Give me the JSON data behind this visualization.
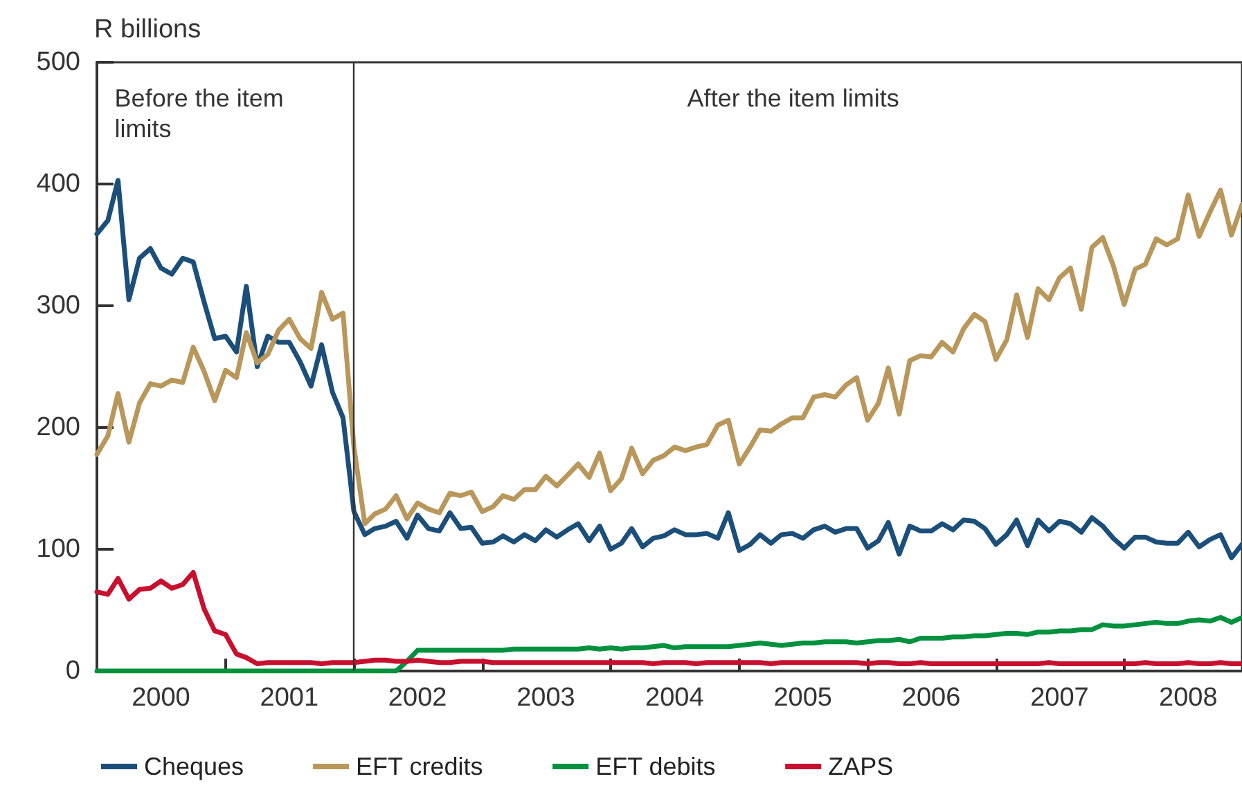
{
  "chart_data": {
    "type": "line",
    "ylabel": "R billions",
    "x": [
      "2000-01",
      "2000-02",
      "2000-03",
      "2000-04",
      "2000-05",
      "2000-06",
      "2000-07",
      "2000-08",
      "2000-09",
      "2000-10",
      "2000-11",
      "2000-12",
      "2001-01",
      "2001-02",
      "2001-03",
      "2001-04",
      "2001-05",
      "2001-06",
      "2001-07",
      "2001-08",
      "2001-09",
      "2001-10",
      "2001-11",
      "2001-12",
      "2002-01",
      "2002-02",
      "2002-03",
      "2002-04",
      "2002-05",
      "2002-06",
      "2002-07",
      "2002-08",
      "2002-09",
      "2002-10",
      "2002-11",
      "2002-12",
      "2003-01",
      "2003-02",
      "2003-03",
      "2003-04",
      "2003-05",
      "2003-06",
      "2003-07",
      "2003-08",
      "2003-09",
      "2003-10",
      "2003-11",
      "2003-12",
      "2004-01",
      "2004-02",
      "2004-03",
      "2004-04",
      "2004-05",
      "2004-06",
      "2004-07",
      "2004-08",
      "2004-09",
      "2004-10",
      "2004-11",
      "2004-12",
      "2005-01",
      "2005-02",
      "2005-03",
      "2005-04",
      "2005-05",
      "2005-06",
      "2005-07",
      "2005-08",
      "2005-09",
      "2005-10",
      "2005-11",
      "2005-12",
      "2006-01",
      "2006-02",
      "2006-03",
      "2006-04",
      "2006-05",
      "2006-06",
      "2006-07",
      "2006-08",
      "2006-09",
      "2006-10",
      "2006-11",
      "2006-12",
      "2007-01",
      "2007-02",
      "2007-03",
      "2007-04",
      "2007-05",
      "2007-06",
      "2007-07",
      "2007-08",
      "2007-09",
      "2007-10",
      "2007-11",
      "2007-12",
      "2008-01",
      "2008-02",
      "2008-03",
      "2008-04",
      "2008-05",
      "2008-06",
      "2008-07",
      "2008-08",
      "2008-09",
      "2008-10",
      "2008-11",
      "2008-12"
    ],
    "series": [
      {
        "name": "Cheques",
        "color": "#1b4f7a",
        "values": [
          359,
          370,
          403,
          305,
          339,
          347,
          331,
          326,
          339,
          336,
          303,
          273,
          275,
          262,
          316,
          250,
          275,
          270,
          270,
          254,
          234,
          268,
          229,
          208,
          131,
          112,
          117,
          119,
          123,
          109,
          128,
          117,
          115,
          130,
          117,
          118,
          105,
          106,
          111,
          106,
          112,
          107,
          116,
          110,
          116,
          121,
          107,
          119,
          100,
          105,
          117,
          102,
          109,
          111,
          116,
          112,
          112,
          113,
          109,
          130,
          99,
          104,
          112,
          105,
          112,
          113,
          109,
          116,
          119,
          114,
          117,
          117,
          101,
          107,
          122,
          96,
          119,
          115,
          115,
          121,
          116,
          124,
          123,
          117,
          104,
          112,
          124,
          103,
          124,
          115,
          123,
          121,
          114,
          126,
          119,
          109,
          101,
          110,
          110,
          106,
          105,
          105,
          114,
          102,
          108,
          112,
          93,
          104
        ]
      },
      {
        "name": "EFT credits",
        "color": "#b9975b",
        "values": [
          178,
          193,
          228,
          188,
          220,
          236,
          234,
          239,
          237,
          266,
          246,
          222,
          247,
          241,
          278,
          253,
          260,
          280,
          289,
          273,
          265,
          311,
          289,
          294,
          184,
          121,
          129,
          133,
          144,
          125,
          138,
          133,
          130,
          146,
          144,
          147,
          131,
          135,
          144,
          141,
          149,
          149,
          160,
          152,
          161,
          170,
          159,
          179,
          148,
          158,
          183,
          162,
          173,
          177,
          184,
          181,
          184,
          186,
          202,
          206,
          170,
          184,
          198,
          197,
          203,
          208,
          208,
          225,
          227,
          225,
          235,
          241,
          206,
          220,
          249,
          211,
          255,
          259,
          258,
          270,
          262,
          281,
          293,
          287,
          256,
          272,
          309,
          274,
          314,
          305,
          323,
          331,
          297,
          348,
          356,
          333,
          301,
          330,
          334,
          355,
          350,
          355,
          391,
          357,
          377,
          395,
          358,
          383
        ]
      },
      {
        "name": "EFT debits",
        "color": "#00913f",
        "values": [
          0,
          0,
          0,
          0,
          0,
          0,
          0,
          0,
          0,
          0,
          0,
          0,
          0,
          0,
          0,
          0,
          0,
          0,
          0,
          0,
          0,
          0,
          0,
          0,
          0,
          0,
          0,
          0,
          0,
          8,
          17,
          17,
          17,
          17,
          17,
          17,
          17,
          17,
          17,
          18,
          18,
          18,
          18,
          18,
          18,
          18,
          19,
          18,
          19,
          18,
          19,
          19,
          20,
          21,
          19,
          20,
          20,
          20,
          20,
          20,
          21,
          22,
          23,
          22,
          21,
          22,
          23,
          23,
          24,
          24,
          24,
          23,
          24,
          25,
          25,
          26,
          24,
          27,
          27,
          27,
          28,
          28,
          29,
          29,
          30,
          31,
          31,
          30,
          32,
          32,
          33,
          33,
          34,
          34,
          38,
          37,
          37,
          38,
          39,
          40,
          39,
          39,
          41,
          42,
          41,
          44,
          40,
          44
        ]
      },
      {
        "name": "ZAPS",
        "color": "#c8102e",
        "values": [
          65,
          63,
          76,
          59,
          67,
          68,
          74,
          68,
          71,
          81,
          51,
          33,
          30,
          14,
          11,
          6,
          7,
          7,
          7,
          7,
          7,
          6,
          7,
          7,
          7,
          8,
          9,
          9,
          8,
          8,
          9,
          8,
          7,
          7,
          8,
          8,
          8,
          7,
          7,
          7,
          7,
          7,
          7,
          7,
          7,
          7,
          7,
          7,
          7,
          7,
          7,
          7,
          6,
          7,
          7,
          7,
          6,
          7,
          7,
          7,
          7,
          7,
          7,
          6,
          7,
          7,
          7,
          7,
          7,
          7,
          7,
          7,
          6,
          7,
          7,
          6,
          6,
          7,
          6,
          6,
          6,
          6,
          6,
          6,
          6,
          6,
          6,
          6,
          6,
          7,
          6,
          6,
          6,
          6,
          6,
          6,
          6,
          6,
          7,
          6,
          6,
          6,
          7,
          6,
          6,
          7,
          6,
          6
        ]
      }
    ],
    "xlim": [
      "2000-01",
      "2008-12"
    ],
    "xticks": [
      {
        "value": "2000-07",
        "label": "2000"
      },
      {
        "value": "2001-01",
        "label": null
      },
      {
        "value": "2001-07",
        "label": "2001"
      },
      {
        "value": "2002-01",
        "label": null
      },
      {
        "value": "2002-07",
        "label": "2002"
      },
      {
        "value": "2003-01",
        "label": null
      },
      {
        "value": "2003-07",
        "label": "2003"
      },
      {
        "value": "2004-01",
        "label": null
      },
      {
        "value": "2004-07",
        "label": "2004"
      },
      {
        "value": "2005-01",
        "label": null
      },
      {
        "value": "2005-07",
        "label": "2005"
      },
      {
        "value": "2006-01",
        "label": null
      },
      {
        "value": "2006-07",
        "label": "2006"
      },
      {
        "value": "2007-01",
        "label": null
      },
      {
        "value": "2007-07",
        "label": "2007"
      },
      {
        "value": "2008-01",
        "label": null
      },
      {
        "value": "2008-07",
        "label": "2008"
      }
    ],
    "ylim": [
      0,
      500
    ],
    "yticks": [
      0,
      100,
      200,
      300,
      400,
      500
    ],
    "ref_lines": [
      {
        "axis": "x",
        "value": "2002-01",
        "color": "#333333"
      }
    ],
    "annotations": [
      "Before the item limits",
      "After the item limits"
    ],
    "legend": "bottom"
  }
}
